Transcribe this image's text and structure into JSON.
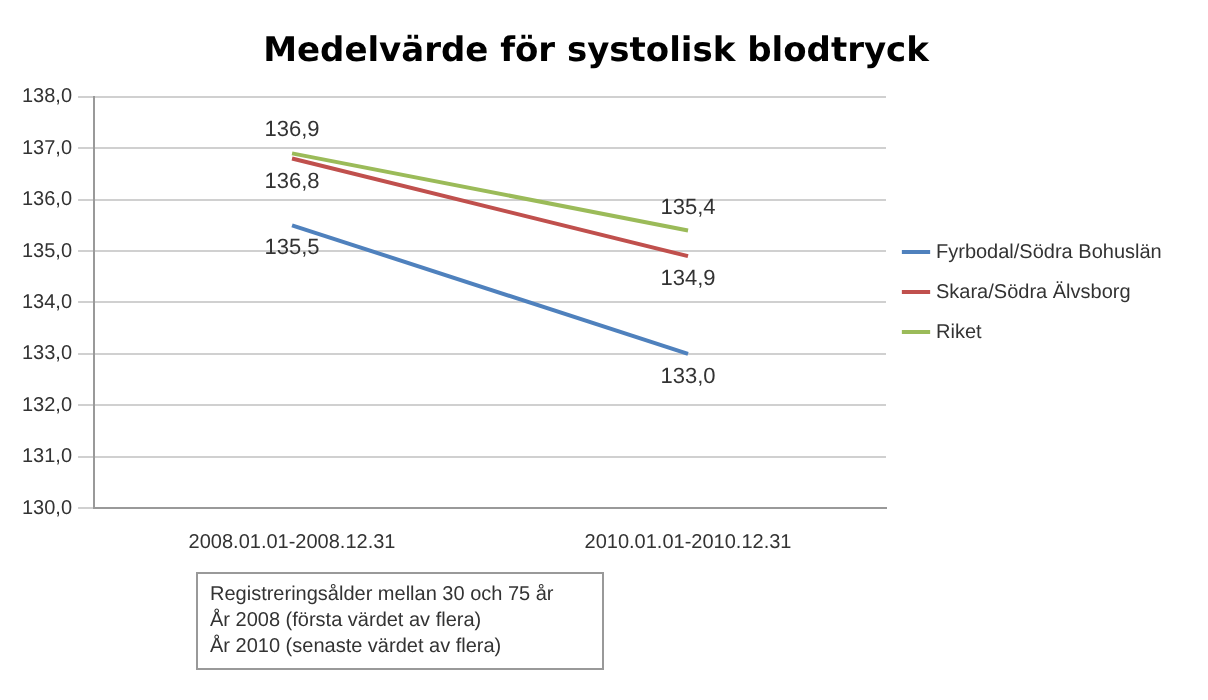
{
  "chart_data": {
    "type": "line",
    "title": "Medelvärde för systolisk blodtryck",
    "categories": [
      "2008.01.01-2008.12.31",
      "2010.01.01-2010.12.31"
    ],
    "series": [
      {
        "name": "Fyrbodal/Södra Bohuslän",
        "color": "#4f81bd",
        "values": [
          135.5,
          133.0
        ],
        "value_labels": [
          "135,5",
          "133,0"
        ]
      },
      {
        "name": "Skara/Södra Älvsborg",
        "color": "#c0504d",
        "values": [
          136.8,
          134.9
        ],
        "value_labels": [
          "136,8",
          "134,9"
        ]
      },
      {
        "name": "Riket",
        "color": "#9bbb59",
        "values": [
          136.9,
          135.4
        ],
        "value_labels": [
          "136,9",
          "135,4"
        ]
      }
    ],
    "ylim": [
      130,
      138
    ],
    "yticks": [
      {
        "value": 130,
        "label": "130,0"
      },
      {
        "value": 131,
        "label": "131,0"
      },
      {
        "value": 132,
        "label": "132,0"
      },
      {
        "value": 133,
        "label": "133,0"
      },
      {
        "value": 134,
        "label": "134,0"
      },
      {
        "value": 135,
        "label": "135,0"
      },
      {
        "value": 136,
        "label": "136,0"
      },
      {
        "value": 137,
        "label": "137,0"
      },
      {
        "value": 138,
        "label": "138,0"
      }
    ],
    "grid": "y",
    "legend": "right",
    "marker": "none",
    "line_style": "solid",
    "annotations": [
      "Registreringsålder mellan 30 och 75 år\nÅr 2008 (första värdet av flera)\nÅr 2010 (senaste värdet av flera)"
    ]
  }
}
